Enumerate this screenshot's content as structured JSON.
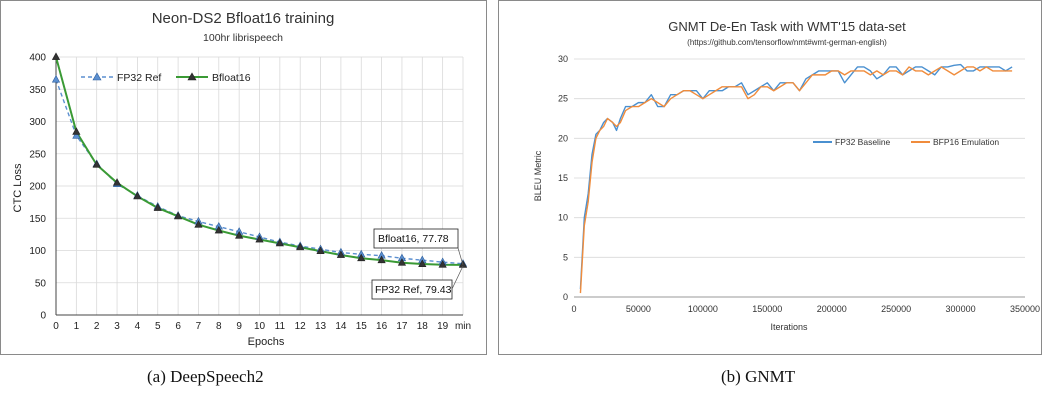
{
  "chart_data": [
    {
      "type": "line",
      "title": "Neon-DS2 Bfloat16 training",
      "subtitle": "100hr librispeech",
      "xlabel": "Epochs",
      "ylabel": "CTC Loss",
      "categories": [
        "0",
        "1",
        "2",
        "3",
        "4",
        "5",
        "6",
        "7",
        "8",
        "9",
        "10",
        "11",
        "12",
        "13",
        "14",
        "15",
        "16",
        "17",
        "18",
        "19",
        "min"
      ],
      "ylim": [
        0,
        400
      ],
      "yticks": [
        0,
        50,
        100,
        150,
        200,
        250,
        300,
        350,
        400
      ],
      "grid": true,
      "legend_position": "top-left",
      "series": [
        {
          "name": "FP32 Ref",
          "color": "#5b8fd0",
          "style": "dashed",
          "marker": "triangle",
          "values": [
            365,
            278,
            234,
            203,
            185,
            168,
            154,
            145,
            137,
            129,
            121,
            113,
            107,
            102,
            97,
            94,
            92,
            88,
            85,
            82,
            79.43
          ]
        },
        {
          "name": "Bfloat16",
          "color": "#3a9a35",
          "style": "solid",
          "marker": "triangle",
          "values": [
            400,
            284,
            233,
            205,
            184,
            166,
            153,
            140,
            131,
            123,
            117,
            111,
            105,
            99,
            93,
            88,
            85,
            81,
            79,
            78,
            77.78
          ]
        }
      ],
      "annotations": [
        {
          "text": "Bfloat16, 77.78",
          "target": "Bfloat16"
        },
        {
          "text": "FP32 Ref, 79.43",
          "target": "FP32 Ref"
        }
      ]
    },
    {
      "type": "line",
      "title": "GNMT De-En Task with WMT'15 data-set",
      "subtitle": "(https://github.com/tensorflow/nmt#wmt-german-english)",
      "xlabel": "Iterations",
      "ylabel": "BLEU Metric",
      "xlim": [
        0,
        350000
      ],
      "xticks": [
        0,
        50000,
        100000,
        150000,
        200000,
        250000,
        300000,
        350000
      ],
      "ylim": [
        0,
        30
      ],
      "yticks": [
        0,
        5,
        10,
        15,
        20,
        25,
        30
      ],
      "grid": true,
      "legend_position": "center-right",
      "series": [
        {
          "name": "FP32 Baseline",
          "color": "#4a90d0",
          "x": [
            5000,
            8000,
            11000,
            14000,
            17000,
            20000,
            23000,
            26000,
            30000,
            33000,
            36000,
            40000,
            45000,
            50000,
            55000,
            60000,
            65000,
            70000,
            75000,
            80000,
            85000,
            90000,
            95000,
            100000,
            105000,
            110000,
            115000,
            120000,
            125000,
            130000,
            135000,
            140000,
            145000,
            150000,
            155000,
            160000,
            165000,
            170000,
            175000,
            180000,
            185000,
            190000,
            195000,
            200000,
            205000,
            210000,
            215000,
            220000,
            225000,
            230000,
            235000,
            240000,
            245000,
            250000,
            255000,
            260000,
            265000,
            270000,
            275000,
            280000,
            285000,
            290000,
            295000,
            300000,
            305000,
            310000,
            315000,
            320000,
            325000,
            330000,
            335000,
            340000
          ],
          "y": [
            1,
            10,
            13,
            18,
            20.5,
            21,
            22,
            22.5,
            22,
            21,
            22.5,
            24,
            24,
            24.5,
            24.5,
            25.5,
            24,
            24,
            25.5,
            25.5,
            26,
            26,
            26,
            25,
            26,
            26,
            26,
            26.5,
            26.5,
            27,
            25.5,
            26,
            26.5,
            27,
            26,
            27,
            27,
            27,
            26,
            27.5,
            28,
            28.5,
            28.5,
            28.5,
            28.5,
            27,
            28,
            29,
            29,
            28.5,
            27.5,
            28,
            29,
            29,
            28,
            28.5,
            29,
            29,
            28.5,
            28,
            29,
            29,
            29.2,
            29.3,
            28.5,
            28.5,
            29,
            29,
            29,
            29,
            28.5,
            29
          ]
        },
        {
          "name": "BFP16 Emulation",
          "color": "#f08c3c",
          "x": [
            5000,
            8000,
            11000,
            14000,
            17000,
            20000,
            23000,
            26000,
            30000,
            33000,
            36000,
            40000,
            45000,
            50000,
            55000,
            60000,
            65000,
            70000,
            75000,
            80000,
            85000,
            90000,
            95000,
            100000,
            105000,
            110000,
            115000,
            120000,
            125000,
            130000,
            135000,
            140000,
            145000,
            150000,
            155000,
            160000,
            165000,
            170000,
            175000,
            180000,
            185000,
            190000,
            195000,
            200000,
            205000,
            210000,
            215000,
            220000,
            225000,
            230000,
            235000,
            240000,
            245000,
            250000,
            255000,
            260000,
            265000,
            270000,
            275000,
            280000,
            285000,
            290000,
            295000,
            300000,
            305000,
            310000,
            315000,
            320000,
            325000,
            330000,
            335000,
            340000
          ],
          "y": [
            0.5,
            9,
            12,
            17,
            20,
            21,
            21.5,
            22.5,
            22,
            21.5,
            22,
            23.5,
            24,
            24,
            24.5,
            25,
            24.5,
            24,
            25,
            25.5,
            26,
            26,
            25.5,
            25,
            25.5,
            26,
            26.5,
            26.5,
            26.5,
            26.5,
            25,
            25.5,
            26.5,
            26.5,
            26,
            26.5,
            27,
            27,
            26,
            27,
            28,
            28,
            28,
            28.5,
            28.5,
            28,
            28.5,
            28.5,
            28.5,
            28,
            28.5,
            28,
            28.5,
            28.5,
            28,
            29,
            28.5,
            28.5,
            28,
            28.5,
            29,
            28.5,
            28,
            28.5,
            29,
            29,
            28.5,
            29,
            28.5,
            28.5,
            28.5,
            28.5
          ]
        }
      ]
    }
  ],
  "captions": {
    "a": "(a) DeepSpeech2",
    "b": "(b) GNMT"
  }
}
